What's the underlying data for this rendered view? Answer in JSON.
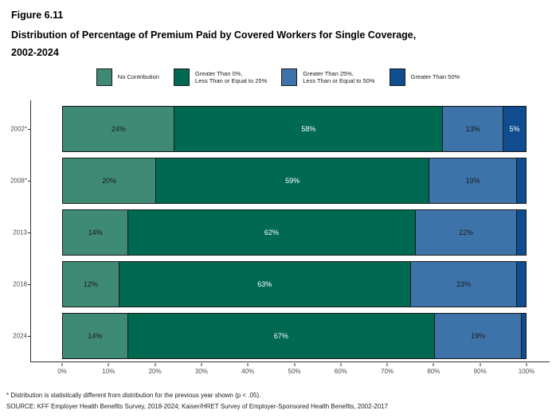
{
  "figure": {
    "number": "Figure 6.11",
    "title": "Distribution of Percentage of Premium Paid by Covered Workers for Single Coverage,\n2002-2024"
  },
  "footnotes": [
    "* Distribution is statistically different from distribution for the previous year shown (p < .05).",
    "SOURCE: KFF Employer Health Benefits Survey, 2018-2024; Kaiser/HRET Survey of Employer-Sponsored Health Benefits, 2002-2017"
  ],
  "chart_data": {
    "type": "bar",
    "orientation": "horizontal-stacked",
    "title": "Distribution of Percentage of Premium Paid by Covered Workers for Single Coverage, 2002-2024",
    "categories": [
      "2002*",
      "2008*",
      "2013",
      "2018",
      "2024"
    ],
    "series": [
      {
        "name": "No Contribution",
        "color": "#3E8A75",
        "label_color": "#1a1a1a",
        "values": [
          24,
          20,
          14,
          12,
          14
        ]
      },
      {
        "name": "Greater Than 0%,\nLess Than or Equal to 25%",
        "color": "#006951",
        "label_color": "#ffffff",
        "values": [
          58,
          59,
          62,
          63,
          67
        ]
      },
      {
        "name": "Greater Than 25%,\nLess Than or Equal to 50%",
        "color": "#3D73A8",
        "label_color": "#1a1a1a",
        "values": [
          13,
          19,
          22,
          23,
          19
        ]
      },
      {
        "name": "Greater Than 50%",
        "color": "#0F4D90",
        "label_color": "#ffffff",
        "values": [
          5,
          2,
          2,
          2,
          1
        ]
      }
    ],
    "data_labels": [
      [
        "24%",
        "58%",
        "13%",
        "5%"
      ],
      [
        "20%",
        "59%",
        "19%",
        ""
      ],
      [
        "14%",
        "62%",
        "22%",
        ""
      ],
      [
        "12%",
        "63%",
        "23%",
        ""
      ],
      [
        "14%",
        "67%",
        "19%",
        ""
      ]
    ],
    "x_ticks": [
      "0%",
      "10%",
      "20%",
      "30%",
      "40%",
      "50%",
      "60%",
      "70%",
      "80%",
      "90%",
      "100%"
    ],
    "xlim": [
      0,
      100
    ],
    "grid": false,
    "legend_position": "top",
    "axis_color": "#333333",
    "bar_border_color": "#1a1a1a"
  }
}
